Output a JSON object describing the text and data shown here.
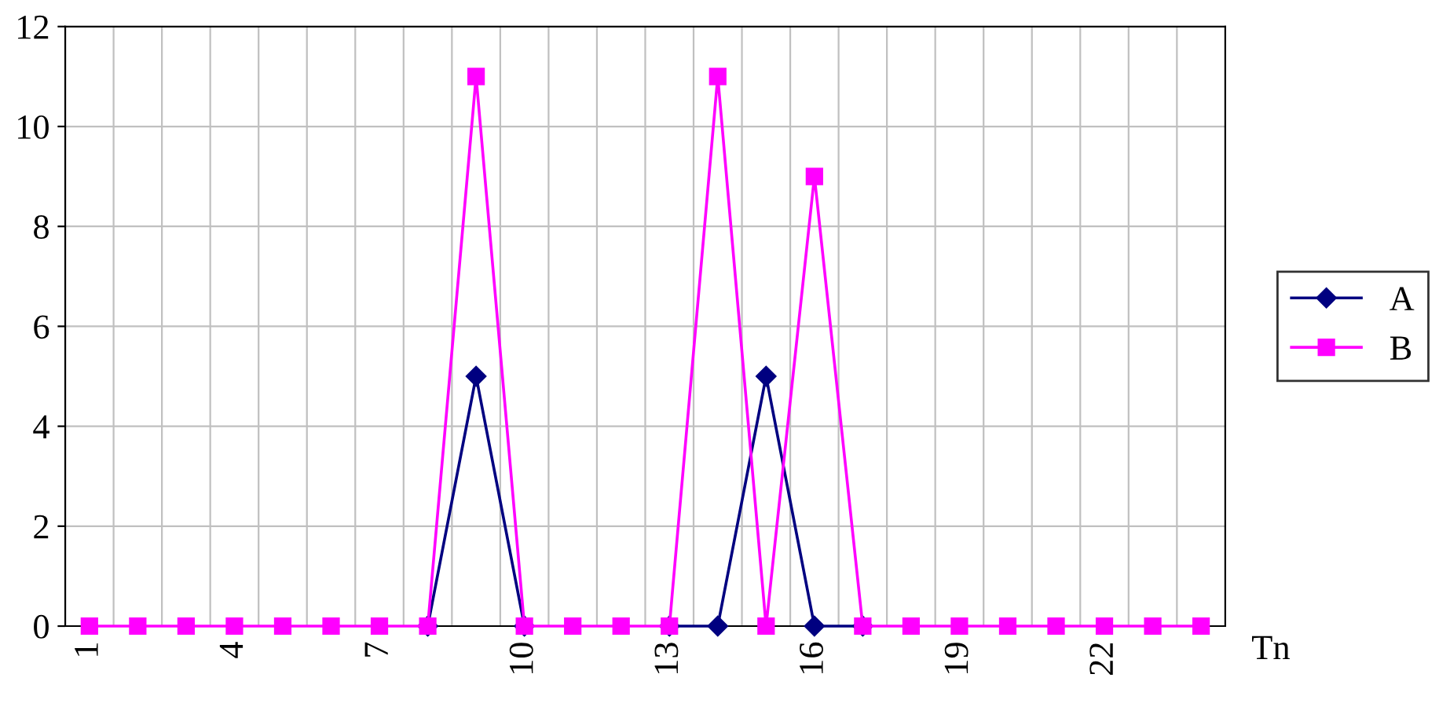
{
  "chart_data": {
    "type": "line",
    "categories": [
      "1",
      null,
      null,
      "4",
      null,
      null,
      "7",
      null,
      null,
      "10",
      null,
      null,
      "13",
      null,
      null,
      "16",
      null,
      null,
      "19",
      null,
      null,
      "22",
      null,
      null
    ],
    "xlabel": "Tn",
    "ylim": [
      0,
      12
    ],
    "yticks": [
      0,
      2,
      4,
      6,
      8,
      10,
      12
    ],
    "grid": true,
    "legend": "right",
    "series": [
      {
        "name": "A",
        "color": "#000080",
        "marker": "diamond",
        "values": [
          null,
          null,
          null,
          null,
          null,
          null,
          null,
          0,
          5,
          0,
          null,
          null,
          0,
          0,
          5,
          0,
          0,
          null,
          null,
          null,
          null,
          null,
          null,
          null
        ]
      },
      {
        "name": "B",
        "color": "#ff00ff",
        "marker": "square",
        "values": [
          0,
          0,
          0,
          0,
          0,
          0,
          0,
          0,
          11,
          0,
          0,
          0,
          0,
          11,
          0,
          9,
          0,
          0,
          0,
          0,
          0,
          0,
          0,
          0
        ]
      }
    ]
  }
}
